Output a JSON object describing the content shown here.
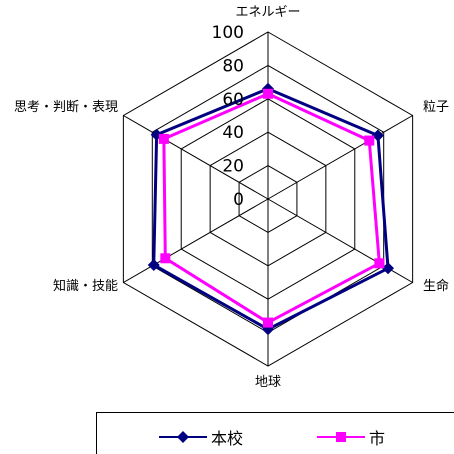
{
  "chart_data": {
    "type": "radar",
    "axes": [
      "エネルギー",
      "粒子",
      "生命",
      "地球",
      "知識・技能",
      "思考・判断・表現"
    ],
    "rlim": [
      0,
      100
    ],
    "r_ticks": [
      "0",
      "20",
      "40",
      "60",
      "80",
      "100"
    ],
    "series": [
      {
        "name": "本校",
        "values": [
          66,
          76,
          83,
          78,
          79,
          77
        ],
        "color": "#000080",
        "marker": "diamond"
      },
      {
        "name": "市",
        "values": [
          63,
          70,
          77,
          74,
          71,
          72
        ],
        "color": "#ff00ff",
        "marker": "square"
      }
    ],
    "grid": true,
    "legend_position": "bottom"
  }
}
